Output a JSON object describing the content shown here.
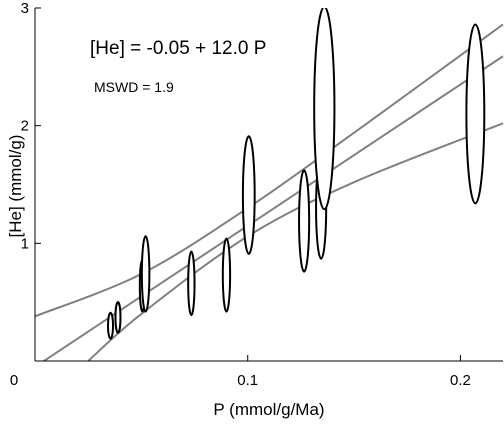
{
  "chart_data": {
    "type": "scatter",
    "title": "",
    "xlabel": "P (mmol/g/Ma)",
    "ylabel": "[He] (mmol/g)",
    "xlim": [
      0,
      0.22
    ],
    "ylim": [
      0,
      3
    ],
    "x_ticks": [
      {
        "value": 0.1,
        "label": "0.1"
      },
      {
        "value": 0.2,
        "label": "0.2"
      }
    ],
    "y_ticks": [
      {
        "value": 1,
        "label": "1"
      },
      {
        "value": 2,
        "label": "2"
      },
      {
        "value": 3,
        "label": "3"
      }
    ],
    "origin_label": "0",
    "grid": false,
    "regression": {
      "equation_text": "[He] = -0.05 + 12.0 P",
      "mswd_text": "MSWD = 1.9",
      "intercept": -0.05,
      "slope": 12.0,
      "envelope_upper": [
        [
          0,
          0.38
        ],
        [
          0.05,
          0.74
        ],
        [
          0.1,
          1.3
        ],
        [
          0.15,
          1.94
        ],
        [
          0.22,
          2.86
        ]
      ],
      "envelope_lower": [
        [
          0.025,
          0
        ],
        [
          0.05,
          0.4
        ],
        [
          0.1,
          1.06
        ],
        [
          0.15,
          1.52
        ],
        [
          0.22,
          2.02
        ]
      ]
    },
    "points": [
      {
        "x": 0.0355,
        "y": 0.3,
        "y_err": 0.11
      },
      {
        "x": 0.039,
        "y": 0.37,
        "y_err": 0.13
      },
      {
        "x": 0.0505,
        "y": 0.64,
        "y_err": 0.22
      },
      {
        "x": 0.052,
        "y": 0.74,
        "y_err": 0.32
      },
      {
        "x": 0.0735,
        "y": 0.66,
        "y_err": 0.27
      },
      {
        "x": 0.09,
        "y": 0.73,
        "y_err": 0.31
      },
      {
        "x": 0.1005,
        "y": 1.41,
        "y_err": 0.5
      },
      {
        "x": 0.1265,
        "y": 1.19,
        "y_err": 0.43
      },
      {
        "x": 0.1345,
        "y": 1.3,
        "y_err": 0.43
      },
      {
        "x": 0.136,
        "y": 2.15,
        "y_err": 0.86
      },
      {
        "x": 0.207,
        "y": 2.1,
        "y_err": 0.76
      }
    ],
    "colors": {
      "regression_lines": "#808080",
      "ellipses": "#000000",
      "axes": "#000000"
    }
  }
}
